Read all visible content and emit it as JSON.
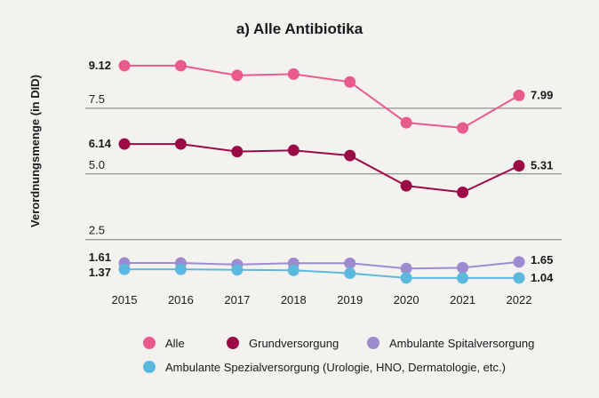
{
  "chart_data": {
    "type": "line",
    "title": "a) Alle Antibiotika",
    "xlabel": "",
    "ylabel": "Verordnungsmenge (in DID)",
    "x": [
      2015,
      2016,
      2017,
      2018,
      2019,
      2020,
      2021,
      2022
    ],
    "ylim": [
      0.8,
      10.2
    ],
    "yticks": [
      2.5,
      5.0,
      7.5
    ],
    "ytick_labels": [
      "2.5",
      "5.0",
      "7.5"
    ],
    "grid": "horizontal",
    "legend_position": "bottom",
    "series": [
      {
        "name": "Alle",
        "color": "#ea5b8d",
        "values": [
          9.12,
          9.12,
          8.75,
          8.8,
          8.5,
          6.95,
          6.75,
          7.99
        ],
        "start_label": "9.12",
        "end_label": "7.99"
      },
      {
        "name": "Grundversorgung",
        "color": "#9b0a45",
        "values": [
          6.14,
          6.14,
          5.85,
          5.9,
          5.7,
          4.55,
          4.3,
          5.31
        ],
        "start_label": "6.14",
        "end_label": "5.31"
      },
      {
        "name": "Ambulante Spitalversorgung",
        "color": "#9b8cd0",
        "values": [
          1.61,
          1.61,
          1.55,
          1.6,
          1.6,
          1.4,
          1.43,
          1.65
        ],
        "start_label": "1.61",
        "end_label": "1.65"
      },
      {
        "name": "Ambulante Spezialversorgung (Urologie, HNO, Dermatologie, etc.)",
        "color": "#5db8e0",
        "values": [
          1.37,
          1.37,
          1.35,
          1.33,
          1.22,
          1.04,
          1.04,
          1.04
        ],
        "start_label": "1.37",
        "end_label": "1.04"
      }
    ]
  }
}
